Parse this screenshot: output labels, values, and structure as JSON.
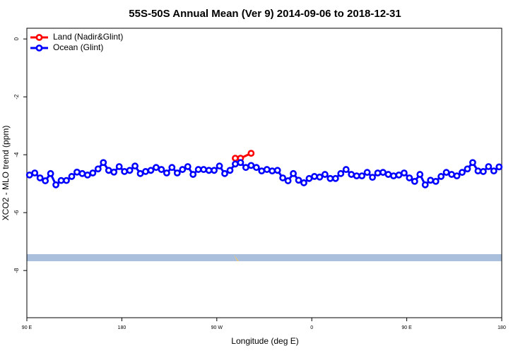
{
  "chart_data": {
    "type": "line",
    "title": "55S-50S Annual Mean (Ver 9)   2014-09-06 to 2018-12-31",
    "x_label": "Longitude (deg E)",
    "y_label": "XCO2 - MLO trend (ppm)",
    "xlim": [
      90,
      540
    ],
    "xticks": [
      {
        "value": 90,
        "label": "90 E"
      },
      {
        "value": 180,
        "label": "180"
      },
      {
        "value": 270,
        "label": "90 W"
      },
      {
        "value": 360,
        "label": "0"
      },
      {
        "value": 450,
        "label": "90 E"
      },
      {
        "value": 540,
        "label": "180"
      }
    ],
    "ylim": [
      -9.63,
      0.37
    ],
    "yticks": [
      0,
      -2,
      -4,
      -6,
      -8
    ],
    "legend": "top-left",
    "series": [
      {
        "name": "Land (Nadir&Glint)",
        "color": "#ff0000",
        "x": [
          287.5,
          292.5,
          302.5
        ],
        "values": [
          -4.12,
          -4.12,
          -3.95
        ]
      },
      {
        "name": "Ocean (Glint)",
        "color": "#0000ff",
        "x": [
          92.5,
          97.5,
          102.5,
          107.5,
          112.5,
          117.5,
          122.5,
          127.5,
          132.5,
          137.5,
          142.5,
          147.5,
          152.5,
          157.5,
          162.5,
          167.5,
          172.5,
          177.5,
          182.5,
          187.5,
          192.5,
          197.5,
          202.5,
          207.5,
          212.5,
          217.5,
          222.5,
          227.5,
          232.5,
          237.5,
          242.5,
          247.5,
          252.5,
          257.5,
          262.5,
          267.5,
          272.5,
          277.5,
          282.5,
          287.5,
          292.5,
          297.5,
          302.5,
          307.5,
          312.5,
          317.5,
          322.5,
          327.5,
          332.5,
          337.5,
          342.5,
          347.5,
          352.5,
          357.5,
          362.5,
          367.5,
          372.5,
          377.5,
          382.5,
          387.5,
          392.5,
          397.5,
          402.5,
          407.5,
          412.5,
          417.5,
          422.5,
          427.5,
          432.5,
          437.5,
          442.5,
          447.5,
          452.5,
          457.5,
          462.5,
          467.5,
          472.5,
          477.5,
          482.5,
          487.5,
          492.5,
          497.5,
          502.5,
          507.5,
          512.5,
          517.5,
          522.5,
          527.5,
          532.5,
          537.5
        ],
        "values": [
          -4.7,
          -4.63,
          -4.8,
          -4.9,
          -4.65,
          -5.04,
          -4.89,
          -4.89,
          -4.75,
          -4.6,
          -4.65,
          -4.7,
          -4.63,
          -4.49,
          -4.27,
          -4.54,
          -4.6,
          -4.41,
          -4.58,
          -4.54,
          -4.39,
          -4.65,
          -4.58,
          -4.54,
          -4.44,
          -4.51,
          -4.63,
          -4.44,
          -4.63,
          -4.51,
          -4.41,
          -4.68,
          -4.51,
          -4.51,
          -4.54,
          -4.54,
          -4.39,
          -4.65,
          -4.54,
          -4.32,
          -4.27,
          -4.44,
          -4.37,
          -4.44,
          -4.56,
          -4.51,
          -4.56,
          -4.54,
          -4.8,
          -4.9,
          -4.65,
          -4.88,
          -4.97,
          -4.82,
          -4.75,
          -4.77,
          -4.68,
          -4.82,
          -4.82,
          -4.65,
          -4.51,
          -4.68,
          -4.73,
          -4.73,
          -4.61,
          -4.78,
          -4.63,
          -4.61,
          -4.68,
          -4.73,
          -4.7,
          -4.63,
          -4.8,
          -4.92,
          -4.68,
          -5.04,
          -4.88,
          -4.92,
          -4.75,
          -4.61,
          -4.68,
          -4.73,
          -4.61,
          -4.49,
          -4.27,
          -4.56,
          -4.58,
          -4.41,
          -4.56,
          -4.42
        ]
      }
    ]
  }
}
